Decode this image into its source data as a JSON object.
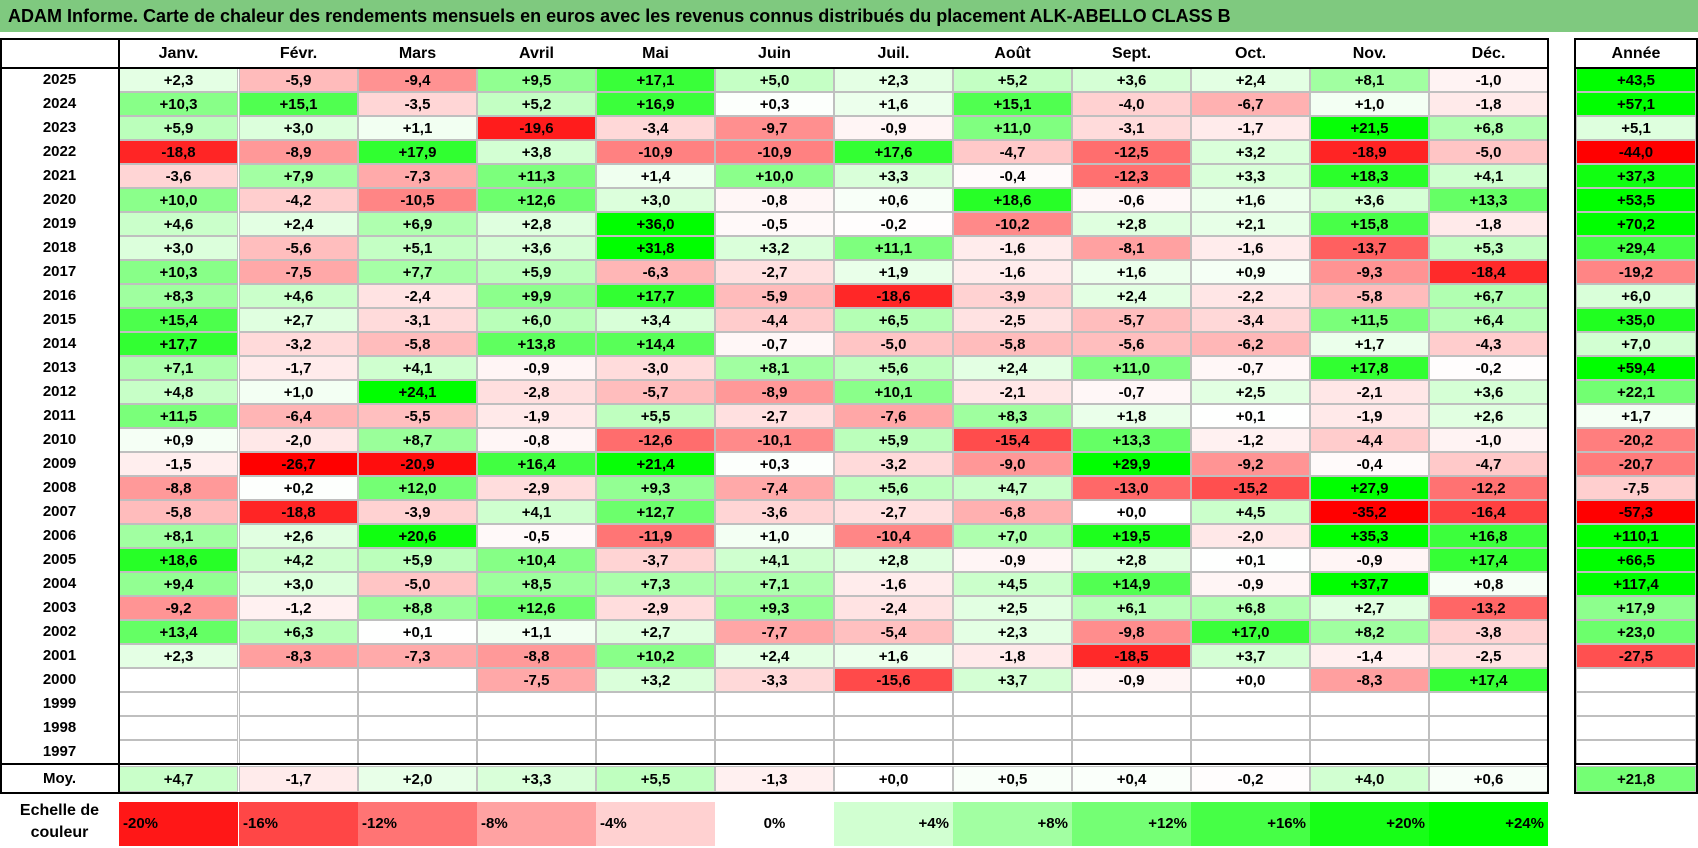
{
  "title": "ADAM Informe. Carte de chaleur des rendements mensuels en euros avec les revenus connus distribués du placement ALK-ABELLO CLASS B",
  "chart_data": {
    "type": "heatmap",
    "title": "ADAM Informe. Carte de chaleur des rendements mensuels en euros avec les revenus connus distribués du placement ALK-ABELLO CLASS B",
    "columns": [
      "Janv.",
      "Févr.",
      "Mars",
      "Avril",
      "Mai",
      "Juin",
      "Juil.",
      "Août",
      "Sept.",
      "Oct.",
      "Nov.",
      "Déc."
    ],
    "year_label": "Année",
    "rows": [
      {
        "year": "2025",
        "values": [
          "+2,3",
          "-5,9",
          "-9,4",
          "+9,5",
          "+17,1",
          "+5,0",
          "+2,3",
          "+5,2",
          "+3,6",
          "+2,4",
          "+8,1",
          "-1,0"
        ],
        "annual": "+43,5"
      },
      {
        "year": "2024",
        "values": [
          "+10,3",
          "+15,1",
          "-3,5",
          "+5,2",
          "+16,9",
          "+0,3",
          "+1,6",
          "+15,1",
          "-4,0",
          "-6,7",
          "+1,0",
          "-1,8"
        ],
        "annual": "+57,1"
      },
      {
        "year": "2023",
        "values": [
          "+5,9",
          "+3,0",
          "+1,1",
          "-19,6",
          "-3,4",
          "-9,7",
          "-0,9",
          "+11,0",
          "-3,1",
          "-1,7",
          "+21,5",
          "+6,8"
        ],
        "annual": "+5,1"
      },
      {
        "year": "2022",
        "values": [
          "-18,8",
          "-8,9",
          "+17,9",
          "+3,8",
          "-10,9",
          "-10,9",
          "+17,6",
          "-4,7",
          "-12,5",
          "+3,2",
          "-18,9",
          "-5,0"
        ],
        "annual": "-44,0"
      },
      {
        "year": "2021",
        "values": [
          "-3,6",
          "+7,9",
          "-7,3",
          "+11,3",
          "+1,4",
          "+10,0",
          "+3,3",
          "-0,4",
          "-12,3",
          "+3,3",
          "+18,3",
          "+4,1"
        ],
        "annual": "+37,3"
      },
      {
        "year": "2020",
        "values": [
          "+10,0",
          "-4,2",
          "-10,5",
          "+12,6",
          "+3,0",
          "-0,8",
          "+0,6",
          "+18,6",
          "-0,6",
          "+1,6",
          "+3,6",
          "+13,3"
        ],
        "annual": "+53,5"
      },
      {
        "year": "2019",
        "values": [
          "+4,6",
          "+2,4",
          "+6,9",
          "+2,8",
          "+36,0",
          "-0,5",
          "-0,2",
          "-10,2",
          "+2,8",
          "+2,1",
          "+15,8",
          "-1,8"
        ],
        "annual": "+70,2"
      },
      {
        "year": "2018",
        "values": [
          "+3,0",
          "-5,6",
          "+5,1",
          "+3,6",
          "+31,8",
          "+3,2",
          "+11,1",
          "-1,6",
          "-8,1",
          "-1,6",
          "-13,7",
          "+5,3"
        ],
        "annual": "+29,4"
      },
      {
        "year": "2017",
        "values": [
          "+10,3",
          "-7,5",
          "+7,7",
          "+5,9",
          "-6,3",
          "-2,7",
          "+1,9",
          "-1,6",
          "+1,6",
          "+0,9",
          "-9,3",
          "-18,4"
        ],
        "annual": "-19,2"
      },
      {
        "year": "2016",
        "values": [
          "+8,3",
          "+4,6",
          "-2,4",
          "+9,9",
          "+17,7",
          "-5,9",
          "-18,6",
          "-3,9",
          "+2,4",
          "-2,2",
          "-5,8",
          "+6,7"
        ],
        "annual": "+6,0"
      },
      {
        "year": "2015",
        "values": [
          "+15,4",
          "+2,7",
          "-3,1",
          "+6,0",
          "+3,4",
          "-4,4",
          "+6,5",
          "-2,5",
          "-5,7",
          "-3,4",
          "+11,5",
          "+6,4"
        ],
        "annual": "+35,0"
      },
      {
        "year": "2014",
        "values": [
          "+17,7",
          "-3,2",
          "-5,8",
          "+13,8",
          "+14,4",
          "-0,7",
          "-5,0",
          "-5,8",
          "-5,6",
          "-6,2",
          "+1,7",
          "-4,3"
        ],
        "annual": "+7,0"
      },
      {
        "year": "2013",
        "values": [
          "+7,1",
          "-1,7",
          "+4,1",
          "-0,9",
          "-3,0",
          "+8,1",
          "+5,6",
          "+2,4",
          "+11,0",
          "-0,7",
          "+17,8",
          "-0,2"
        ],
        "annual": "+59,4"
      },
      {
        "year": "2012",
        "values": [
          "+4,8",
          "+1,0",
          "+24,1",
          "-2,8",
          "-5,7",
          "-8,9",
          "+10,1",
          "-2,1",
          "-0,7",
          "+2,5",
          "-2,1",
          "+3,6"
        ],
        "annual": "+22,1"
      },
      {
        "year": "2011",
        "values": [
          "+11,5",
          "-6,4",
          "-5,5",
          "-1,9",
          "+5,5",
          "-2,7",
          "-7,6",
          "+8,3",
          "+1,8",
          "+0,1",
          "-1,9",
          "+2,6"
        ],
        "annual": "+1,7"
      },
      {
        "year": "2010",
        "values": [
          "+0,9",
          "-2,0",
          "+8,7",
          "-0,8",
          "-12,6",
          "-10,1",
          "+5,9",
          "-15,4",
          "+13,3",
          "-1,2",
          "-4,4",
          "-1,0"
        ],
        "annual": "-20,2"
      },
      {
        "year": "2009",
        "values": [
          "-1,5",
          "-26,7",
          "-20,9",
          "+16,4",
          "+21,4",
          "+0,3",
          "-3,2",
          "-9,0",
          "+29,9",
          "-9,2",
          "-0,4",
          "-4,7"
        ],
        "annual": "-20,7"
      },
      {
        "year": "2008",
        "values": [
          "-8,8",
          "+0,2",
          "+12,0",
          "-2,9",
          "+9,3",
          "-7,4",
          "+5,6",
          "+4,7",
          "-13,0",
          "-15,2",
          "+27,9",
          "-12,2"
        ],
        "annual": "-7,5"
      },
      {
        "year": "2007",
        "values": [
          "-5,8",
          "-18,8",
          "-3,9",
          "+4,1",
          "+12,7",
          "-3,6",
          "-2,7",
          "-6,8",
          "+0,0",
          "+4,5",
          "-35,2",
          "-16,4"
        ],
        "annual": "-57,3"
      },
      {
        "year": "2006",
        "values": [
          "+8,1",
          "+2,6",
          "+20,6",
          "-0,5",
          "-11,9",
          "+1,0",
          "-10,4",
          "+7,0",
          "+19,5",
          "-2,0",
          "+35,3",
          "+16,8"
        ],
        "annual": "+110,1"
      },
      {
        "year": "2005",
        "values": [
          "+18,6",
          "+4,2",
          "+5,9",
          "+10,4",
          "-3,7",
          "+4,1",
          "+2,8",
          "-0,9",
          "+2,8",
          "+0,1",
          "-0,9",
          "+17,4"
        ],
        "annual": "+66,5"
      },
      {
        "year": "2004",
        "values": [
          "+9,4",
          "+3,0",
          "-5,0",
          "+8,5",
          "+7,3",
          "+7,1",
          "-1,6",
          "+4,5",
          "+14,9",
          "-0,9",
          "+37,7",
          "+0,8"
        ],
        "annual": "+117,4"
      },
      {
        "year": "2003",
        "values": [
          "-9,2",
          "-1,2",
          "+8,8",
          "+12,6",
          "-2,9",
          "+9,3",
          "-2,4",
          "+2,5",
          "+6,1",
          "+6,8",
          "+2,7",
          "-13,2"
        ],
        "annual": "+17,9"
      },
      {
        "year": "2002",
        "values": [
          "+13,4",
          "+6,3",
          "+0,1",
          "+1,1",
          "+2,7",
          "-7,7",
          "-5,4",
          "+2,3",
          "-9,8",
          "+17,0",
          "+8,2",
          "-3,8"
        ],
        "annual": "+23,0"
      },
      {
        "year": "2001",
        "values": [
          "+2,3",
          "-8,3",
          "-7,3",
          "-8,8",
          "+10,2",
          "+2,4",
          "+1,6",
          "-1,8",
          "-18,5",
          "+3,7",
          "-1,4",
          "-2,5"
        ],
        "annual": "-27,5"
      },
      {
        "year": "2000",
        "values": [
          "",
          "",
          "",
          "-7,5",
          "+3,2",
          "-3,3",
          "-15,6",
          "+3,7",
          "-0,9",
          "+0,0",
          "-8,3",
          "+17,4"
        ],
        "annual": ""
      },
      {
        "year": "1999",
        "values": [
          "",
          "",
          "",
          "",
          "",
          "",
          "",
          "",
          "",
          "",
          "",
          ""
        ],
        "annual": ""
      },
      {
        "year": "1998",
        "values": [
          "",
          "",
          "",
          "",
          "",
          "",
          "",
          "",
          "",
          "",
          "",
          ""
        ],
        "annual": ""
      },
      {
        "year": "1997",
        "values": [
          "",
          "",
          "",
          "",
          "",
          "",
          "",
          "",
          "",
          "",
          "",
          ""
        ],
        "annual": ""
      }
    ],
    "average": {
      "label": "Moy.",
      "values": [
        "+4,7",
        "-1,7",
        "+2,0",
        "+3,3",
        "+5,5",
        "-1,3",
        "+0,0",
        "+0,5",
        "+0,4",
        "-0,2",
        "+4,0",
        "+0,6"
      ],
      "annual": "+21,8"
    },
    "legend": {
      "label_line1": "Echelle de",
      "label_line2": "couleur",
      "steps": [
        "-20%",
        "-16%",
        "-12%",
        "-8%",
        "-4%",
        "0%",
        "+4%",
        "+8%",
        "+12%",
        "+16%",
        "+20%",
        "+24%"
      ]
    },
    "colors": {
      "negative": "#ff0000",
      "neutral": "#ffffff",
      "positive": "#00ff00",
      "title_bg": "#7fc97f"
    }
  }
}
